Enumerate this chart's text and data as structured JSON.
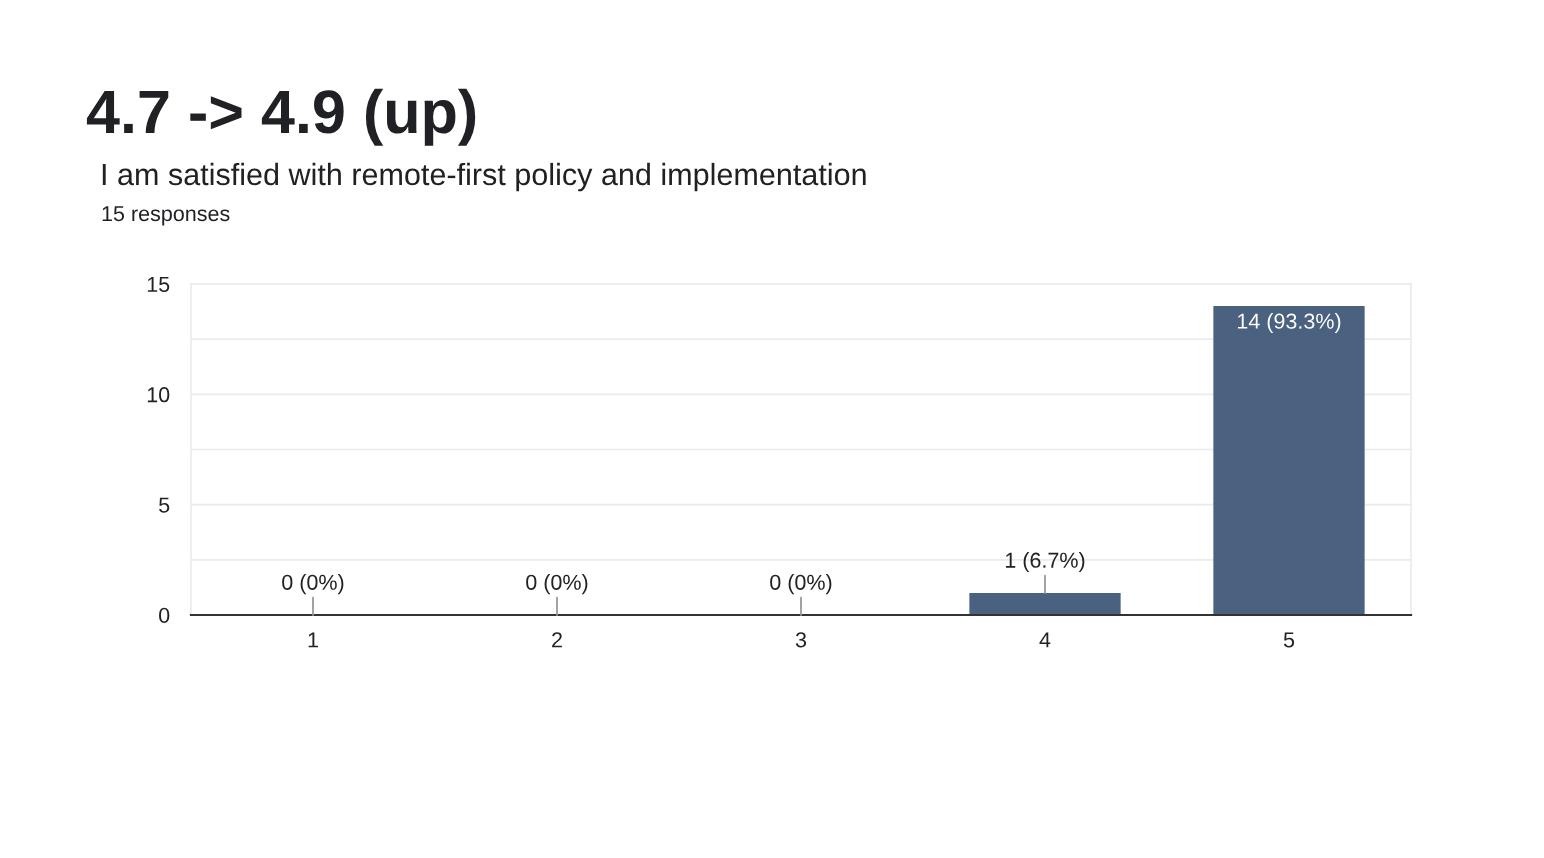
{
  "chart_data": {
    "type": "bar",
    "title": "4.7 -> 4.9 (up)",
    "subtitle": "I am satisfied with remote-first policy and implementation",
    "annotations": [
      "15 responses"
    ],
    "categories": [
      "1",
      "2",
      "3",
      "4",
      "5"
    ],
    "values": [
      0,
      0,
      0,
      1,
      14
    ],
    "color": "#4b6180",
    "value_labels": [
      "0 (0%)",
      "0 (0%)",
      "0 (0%)",
      "1 (6.7%)",
      "14 (93.3%)"
    ],
    "ylim": [
      0,
      15
    ],
    "yticks": [
      0,
      {
        "value": 2.5,
        "label": null
      },
      5,
      {
        "value": 7.5,
        "label": null
      },
      10,
      {
        "value": 12.5,
        "label": null
      },
      15
    ],
    "grid": "y"
  }
}
